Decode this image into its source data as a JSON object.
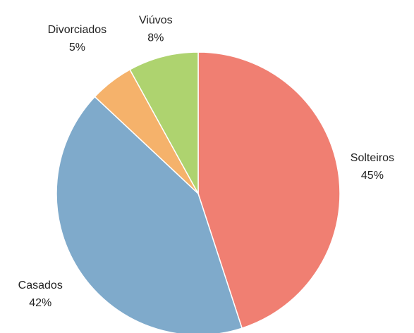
{
  "chart_data": {
    "type": "pie",
    "categories": [
      "Solteiros",
      "Casados",
      "Divorciados",
      "Viúvos"
    ],
    "values": [
      45,
      42,
      5,
      8
    ],
    "value_labels": [
      "45%",
      "42%",
      "5%",
      "8%"
    ],
    "colors": [
      "#f07f72",
      "#7faacb",
      "#f5b26b",
      "#aed36f"
    ]
  }
}
